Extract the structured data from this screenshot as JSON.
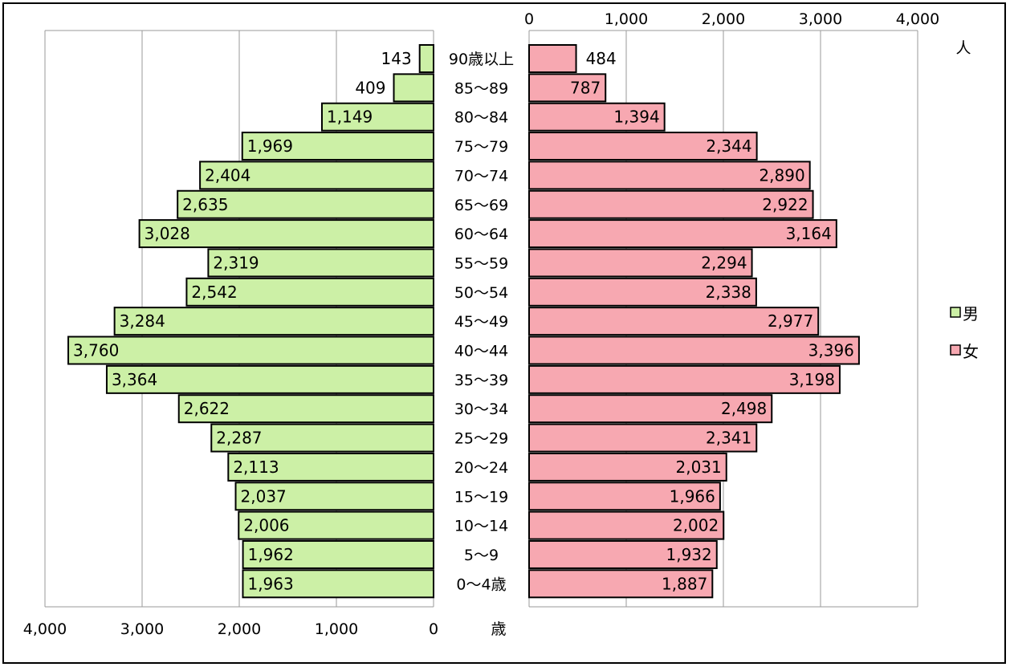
{
  "chart_data": {
    "type": "bar",
    "subtype": "population-pyramid",
    "categories": [
      "0～4歳",
      "5～9",
      "10～14",
      "15～19",
      "20～24",
      "25～29",
      "30～34",
      "35～39",
      "40～44",
      "45～49",
      "50～54",
      "55～59",
      "60～64",
      "65～69",
      "70～74",
      "75～79",
      "80～84",
      "85～89",
      "90歳以上"
    ],
    "series": [
      {
        "name": "男",
        "color": "#ccf0a6",
        "side": "left",
        "values": [
          1963,
          1962,
          2006,
          2037,
          2113,
          2287,
          2622,
          3364,
          3760,
          3284,
          2542,
          2319,
          3028,
          2635,
          2404,
          1969,
          1149,
          409,
          143
        ]
      },
      {
        "name": "女",
        "color": "#f7a8b1",
        "side": "right",
        "values": [
          1887,
          1932,
          2002,
          1966,
          2031,
          2341,
          2498,
          3198,
          3396,
          2977,
          2338,
          2294,
          3164,
          2922,
          2890,
          2344,
          1394,
          787,
          484
        ]
      }
    ],
    "value_labels": {
      "男": [
        "1,963",
        "1,962",
        "2,006",
        "2,037",
        "2,113",
        "2,287",
        "2,622",
        "3,364",
        "3,760",
        "3,284",
        "2,542",
        "2,319",
        "3,028",
        "2,635",
        "2,404",
        "1,969",
        "1,149",
        "409",
        "143"
      ],
      "女": [
        "1,887",
        "1,932",
        "2,002",
        "1,966",
        "2,031",
        "2,341",
        "2,498",
        "3,198",
        "3,396",
        "2,977",
        "2,338",
        "2,294",
        "3,164",
        "2,922",
        "2,890",
        "2,344",
        "1,394",
        "787",
        "484"
      ]
    },
    "left_axis": {
      "ticks": [
        "4,000",
        "3,000",
        "2,000",
        "1,000",
        "0"
      ],
      "range": [
        0,
        4000
      ],
      "reversed": true
    },
    "right_axis": {
      "ticks": [
        "0",
        "1,000",
        "2,000",
        "3,000",
        "4,000"
      ],
      "range": [
        0,
        4000
      ]
    },
    "right_axis_unit": "人",
    "age_axis_unit": "歳",
    "grid": true,
    "legend": {
      "placement": "right",
      "entries": [
        "男",
        "女"
      ]
    }
  }
}
